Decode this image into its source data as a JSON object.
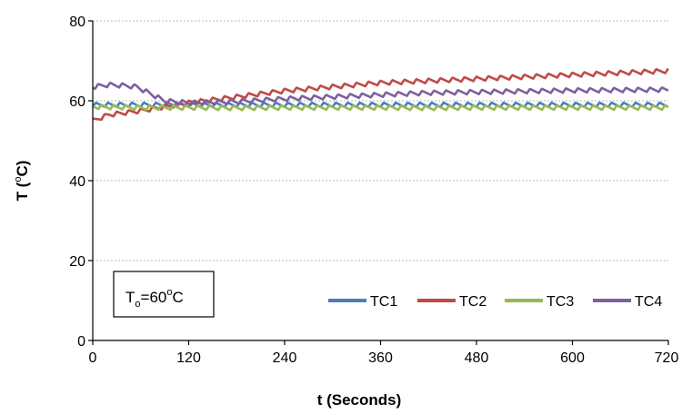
{
  "chart_data": {
    "type": "line",
    "xlabel": "t (Seconds)",
    "ylabel_main": "T (",
    "ylabel_sup": "o",
    "ylabel_end": "C)",
    "xlim": [
      0,
      720
    ],
    "ylim": [
      0,
      80
    ],
    "xticks": [
      0,
      120,
      240,
      360,
      480,
      600,
      720
    ],
    "yticks": [
      0,
      20,
      40,
      60,
      80
    ],
    "grid": "horizontal-dashed",
    "legend_position": "bottom-right",
    "annotation": {
      "main": "T",
      "sub": "o",
      "eq": "=60",
      "sup": "o",
      "end": "C"
    },
    "series": [
      {
        "name": "TC1",
        "color": "#4a7ebb",
        "x": [
          0,
          60,
          120,
          180,
          240,
          300,
          360,
          420,
          480,
          540,
          600,
          660,
          720
        ],
        "y": [
          59,
          59,
          59,
          59,
          59,
          59,
          59,
          59,
          59,
          59,
          59,
          59,
          59
        ]
      },
      {
        "name": "TC2",
        "color": "#be4b48",
        "x": [
          0,
          20,
          40,
          60,
          90,
          120,
          180,
          240,
          300,
          360,
          420,
          480,
          540,
          600,
          660,
          720
        ],
        "y": [
          55,
          56.5,
          57,
          57.5,
          58.5,
          59.5,
          61,
          62.5,
          63.5,
          64.5,
          65,
          65.5,
          66,
          66.5,
          67,
          67.5
        ]
      },
      {
        "name": "TC3",
        "color": "#98b954",
        "x": [
          0,
          60,
          120,
          180,
          240,
          300,
          360,
          420,
          480,
          540,
          600,
          660,
          720
        ],
        "y": [
          58.5,
          58.3,
          58.3,
          58.2,
          58.3,
          58.3,
          58.3,
          58.2,
          58.3,
          58.3,
          58.3,
          58.3,
          58.3
        ]
      },
      {
        "name": "TC4",
        "color": "#7d60a0",
        "x": [
          0,
          20,
          40,
          55,
          70,
          90,
          120,
          180,
          240,
          300,
          360,
          420,
          480,
          540,
          600,
          660,
          720
        ],
        "y": [
          63.5,
          64,
          63.8,
          63.5,
          62,
          60,
          59.5,
          59.8,
          60.5,
          61,
          61.5,
          62,
          62.2,
          62.4,
          62.6,
          62.7,
          62.8
        ]
      }
    ]
  }
}
